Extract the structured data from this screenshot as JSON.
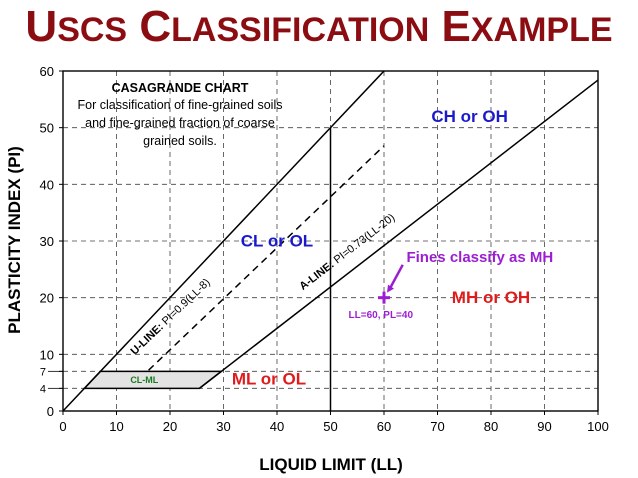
{
  "slide": {
    "title": "USCS Classification Example",
    "title_color": "#8b0d12"
  },
  "chart_data": {
    "type": "line",
    "title": "CASAGRANDE CHART",
    "subtitle_lines": [
      "For classification of fine-grained soils",
      "and fine-grained fraction of coarse",
      "grained soils."
    ],
    "xlabel": "LIQUID LIMIT (LL)",
    "ylabel": "PLASTICITY INDEX (PI)",
    "xlim": [
      0,
      100
    ],
    "ylim": [
      0,
      60
    ],
    "x_ticks": [
      0,
      10,
      20,
      30,
      40,
      50,
      60,
      70,
      80,
      90,
      100
    ],
    "y_ticks": [
      0,
      4,
      7,
      10,
      20,
      30,
      40,
      50,
      60
    ],
    "grid": "dashed",
    "lines": [
      {
        "label": "A-LINE: PI=0.73(LL-20)",
        "points": [
          [
            25.5,
            4
          ],
          [
            100,
            58.4
          ]
        ],
        "style": "solid"
      },
      {
        "label": "U-LINE: PI=0.9(LL-8)",
        "points": [
          [
            16,
            7.2
          ],
          [
            60,
            46.8
          ]
        ],
        "style": "dashed"
      },
      {
        "label": "",
        "points": [
          [
            0,
            0
          ],
          [
            60,
            60
          ]
        ],
        "style": "solid"
      },
      {
        "label": "",
        "points": [
          [
            50,
            0
          ],
          [
            50,
            50
          ]
        ],
        "style": "solid"
      }
    ],
    "regions": [
      {
        "label": "CL or OL",
        "x": 40,
        "y": 29,
        "color": "#1a1acc"
      },
      {
        "label": "CH or OH",
        "x": 76,
        "y": 51,
        "color": "#1a1acc"
      },
      {
        "label": "ML or OL",
        "x": 38.5,
        "y": 4.7,
        "color": "#e01b1b"
      },
      {
        "label": "MH or OH",
        "x": 80,
        "y": 19.1,
        "color": "#e01b1b"
      }
    ],
    "cl_ml_zone": {
      "label": "CL-ML",
      "polygon": [
        [
          4,
          4
        ],
        [
          7,
          7
        ],
        [
          29.6,
          7
        ],
        [
          25.5,
          4
        ]
      ],
      "fill": "#e3e3e3",
      "label_color": "#197a1f"
    },
    "data_point": {
      "x": 60,
      "y": 20,
      "label": "LL=60, PL=40",
      "annotation": "Fines classify as MH",
      "color": "#9b1fd1"
    }
  }
}
